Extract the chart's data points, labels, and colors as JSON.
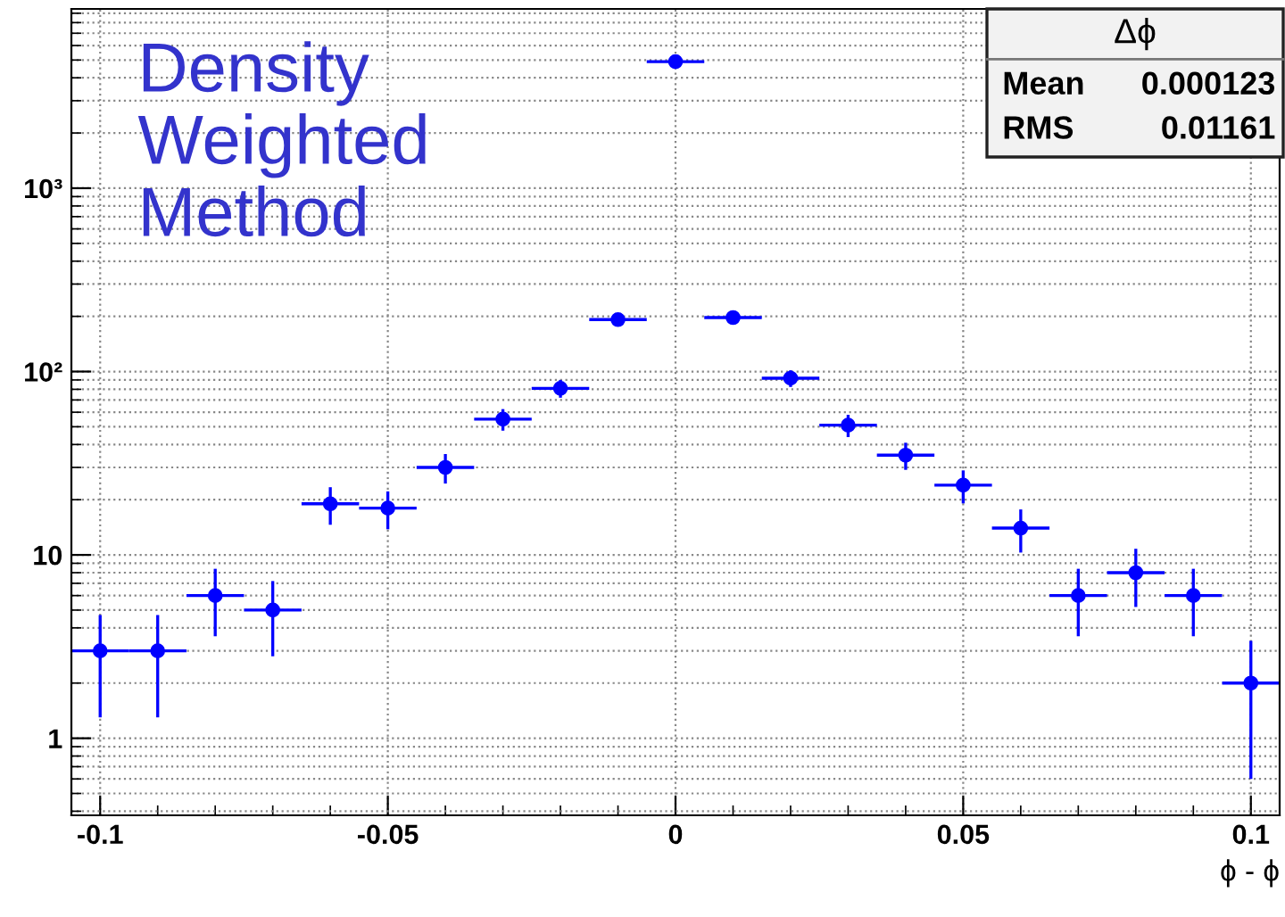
{
  "chart_data": {
    "type": "scatter",
    "x": [
      -0.1,
      -0.09,
      -0.08,
      -0.07,
      -0.06,
      -0.05,
      -0.04,
      -0.03,
      -0.02,
      -0.01,
      0,
      0.01,
      0.02,
      0.03,
      0.04,
      0.05,
      0.06,
      0.07,
      0.08,
      0.09,
      0.1
    ],
    "series": [
      {
        "color": "#0000ff",
        "values": [
          3,
          3,
          6,
          5,
          19,
          18,
          30,
          55,
          81,
          192,
          4900,
          197,
          92,
          51,
          35,
          24,
          14,
          6,
          8,
          6,
          2
        ],
        "errors": [
          1.7,
          1.7,
          2.4,
          2.2,
          4.4,
          4.2,
          5.5,
          7.4,
          9,
          14,
          70,
          14,
          9.6,
          7.1,
          5.9,
          4.9,
          3.7,
          2.4,
          2.8,
          2.4,
          1.4
        ],
        "xerrors": [
          0.005,
          0.005,
          0.005,
          0.005,
          0.005,
          0.005,
          0.005,
          0.005,
          0.005,
          0.005,
          0.005,
          0.005,
          0.005,
          0.005,
          0.005,
          0.005,
          0.005,
          0.005,
          0.005,
          0.005,
          0.005
        ]
      }
    ],
    "xlabel": "ϕ - ϕ",
    "annotations": [
      "Density\nWeighted\nMethod",
      "Δϕ",
      "Mean",
      "0.000123",
      "RMS",
      "0.01161"
    ],
    "xlim": [
      -0.105,
      0.105
    ],
    "xticks": [
      {
        "value": -0.1,
        "label": "-0.1"
      },
      {
        "value": -0.05,
        "label": "-0.05"
      },
      0,
      0.05,
      0.1
    ],
    "ylim": [
      0.38,
      9500
    ],
    "yticks": [
      1,
      10,
      {
        "value": 100,
        "label": "10²"
      },
      {
        "value": 1000,
        "label": "10³"
      }
    ],
    "log": "y",
    "grid": true,
    "marker": "circle"
  }
}
